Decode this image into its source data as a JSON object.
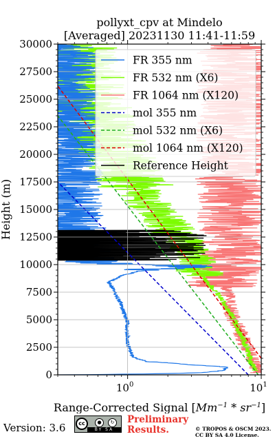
{
  "chart_data": {
    "type": "line",
    "title_line1": "pollyxt_cpv at Mindelo",
    "title_line2": "[Averaged] 20231130 11:41-11:59",
    "xlabel_main": "Range-Corrected Signal [",
    "xlabel_unit": "Mm",
    "xlabel_unit_exp1": "−1",
    "xlabel_star": " * ",
    "xlabel_unit2": "sr",
    "xlabel_unit_exp2": "−1",
    "xlabel_end": "]",
    "ylabel": "Height (m)",
    "xscale": "log",
    "xlim": [
      0.3,
      10
    ],
    "ylim": [
      0,
      30000
    ],
    "xticks": [
      {
        "value": 1,
        "base": "10",
        "exp": "0"
      },
      {
        "value": 10,
        "base": "10",
        "exp": "1"
      }
    ],
    "yticks": [
      "0",
      "2500",
      "5000",
      "7500",
      "10000",
      "12500",
      "15000",
      "17500",
      "20000",
      "22500",
      "25000",
      "27500",
      "30000"
    ],
    "grid": true,
    "legend_position": "upper-right",
    "series": [
      {
        "name": "FR 355 nm",
        "color": "#1f77e8",
        "style": "solid",
        "points": [
          [
            0.3,
            0
          ],
          [
            0.9,
            60
          ],
          [
            3.5,
            200
          ],
          [
            5.2,
            400
          ],
          [
            5.5,
            700
          ],
          [
            3.0,
            900
          ],
          [
            1.4,
            1200
          ],
          [
            1.1,
            1600
          ],
          [
            1.05,
            2200
          ],
          [
            1.0,
            2800
          ],
          [
            1.0,
            3500
          ],
          [
            0.98,
            4200
          ],
          [
            1.0,
            4800
          ],
          [
            0.95,
            5400
          ],
          [
            0.92,
            6000
          ],
          [
            0.88,
            6600
          ],
          [
            0.82,
            7200
          ],
          [
            0.78,
            7800
          ],
          [
            0.72,
            8400
          ],
          [
            0.9,
            9000
          ],
          [
            1.2,
            9400
          ],
          [
            2.0,
            9700
          ],
          [
            2.8,
            9900
          ],
          [
            1.0,
            10050
          ],
          [
            0.6,
            10200
          ],
          [
            0.45,
            10600
          ],
          [
            0.4,
            12000
          ],
          [
            0.38,
            15000
          ],
          [
            0.36,
            20000
          ],
          [
            0.35,
            25000
          ],
          [
            0.35,
            30000
          ]
        ]
      },
      {
        "name": "FR 532 nm (X6)",
        "color": "#7cfc00",
        "style": "solid",
        "points": [
          [
            9.0,
            400
          ],
          [
            8.5,
            1000
          ],
          [
            8.0,
            2000
          ],
          [
            7.5,
            3000
          ],
          [
            6.8,
            4000
          ],
          [
            6.2,
            5000
          ],
          [
            5.6,
            6000
          ],
          [
            5.0,
            7000
          ],
          [
            4.2,
            8000
          ],
          [
            3.6,
            9000
          ],
          [
            3.2,
            10000
          ],
          [
            3.0,
            11000
          ],
          [
            2.6,
            12000
          ],
          [
            2.2,
            13000
          ],
          [
            1.9,
            14000
          ],
          [
            1.6,
            15000
          ],
          [
            1.35,
            16000
          ],
          [
            1.15,
            17000
          ],
          [
            0.95,
            18500
          ],
          [
            0.8,
            20000
          ],
          [
            0.7,
            21500
          ],
          [
            0.6,
            23000
          ],
          [
            0.52,
            25000
          ],
          [
            0.45,
            27000
          ],
          [
            0.42,
            30000
          ]
        ]
      },
      {
        "name": "FR 1064 nm (X120)",
        "color": "#f87474",
        "style": "solid",
        "points": [
          [
            9.5,
            200
          ],
          [
            8.5,
            1500
          ],
          [
            7.5,
            3000
          ],
          [
            6.5,
            4500
          ],
          [
            5.8,
            6000
          ],
          [
            5.5,
            7500
          ],
          [
            5.2,
            8500
          ],
          [
            5.8,
            9500
          ],
          [
            6.5,
            10500
          ],
          [
            6.2,
            12000
          ],
          [
            6.0,
            14000
          ],
          [
            6.3,
            16000
          ],
          [
            6.0,
            18000
          ],
          [
            6.5,
            20000
          ],
          [
            6.0,
            22000
          ],
          [
            6.5,
            24000
          ],
          [
            6.0,
            26000
          ],
          [
            6.5,
            28000
          ],
          [
            6.0,
            30000
          ]
        ]
      },
      {
        "name": "mol 355 nm",
        "color": "#0000cc",
        "style": "dashed",
        "points": [
          [
            8.0,
            0
          ],
          [
            0.3,
            17500
          ]
        ]
      },
      {
        "name": "mol 532 nm (X6)",
        "color": "#1fae1f",
        "style": "dashed",
        "points": [
          [
            9.5,
            0
          ],
          [
            0.3,
            23500
          ]
        ]
      },
      {
        "name": "mol 1064 nm (X120)",
        "color": "#dd0000",
        "style": "dashed",
        "points": [
          [
            10.0,
            1500
          ],
          [
            0.3,
            26200
          ]
        ]
      },
      {
        "name": "Reference Height",
        "color": "#000000",
        "style": "solid",
        "points": [
          [
            0.3,
            10500
          ],
          [
            3.5,
            10500
          ],
          [
            0.3,
            13000
          ],
          [
            3.5,
            13000
          ]
        ]
      }
    ]
  },
  "footer": {
    "version": "Version: 3.6",
    "cc_letters": "cc",
    "cc_by": "BY",
    "cc_sa": "SA",
    "preliminary_line1": "Preliminary",
    "preliminary_line2": "Results.",
    "copyright_line1": "© TROPOS & OSCM 2023.",
    "copyright_line2": "CC BY SA 4.0 License."
  }
}
